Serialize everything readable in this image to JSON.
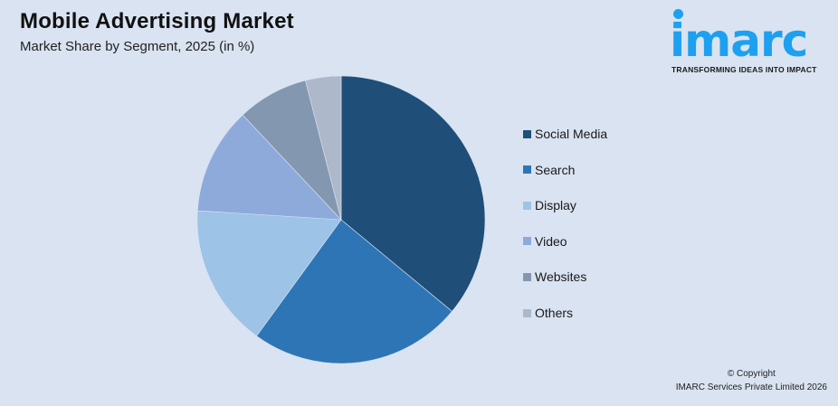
{
  "header": {
    "title": "Mobile Advertising Market",
    "subtitle": "Market Share by Segment, 2025 (in %)"
  },
  "logo": {
    "wordmark": "imarc",
    "tagline": "TRANSFORMING IDEAS INTO IMPACT",
    "color": "#1ea0f0"
  },
  "legend": {
    "items": [
      {
        "label": "Social Media",
        "color": "#1f4e79"
      },
      {
        "label": "Search",
        "color": "#2e75b6"
      },
      {
        "label": "Display",
        "color": "#9dc3e6"
      },
      {
        "label": "Video",
        "color": "#8eaadb"
      },
      {
        "label": "Websites",
        "color": "#8497b0"
      },
      {
        "label": "Others",
        "color": "#adb9ca"
      }
    ]
  },
  "footer": {
    "copyright_line1": "© Copyright",
    "copyright_line2": "IMARC Services Private Limited 2026"
  },
  "chart_data": {
    "type": "pie",
    "title": "Mobile Advertising Market",
    "subtitle": "Market Share by Segment, 2025 (in %)",
    "categories": [
      "Social Media",
      "Search",
      "Display",
      "Video",
      "Websites",
      "Others"
    ],
    "values": [
      36,
      24,
      16,
      12,
      8,
      4
    ],
    "colors": [
      "#1f4e79",
      "#2e75b6",
      "#9dc3e6",
      "#8eaadb",
      "#8497b0",
      "#adb9ca"
    ],
    "start_angle": "12 o'clock, clockwise",
    "legend_position": "right",
    "data_labels": false
  }
}
